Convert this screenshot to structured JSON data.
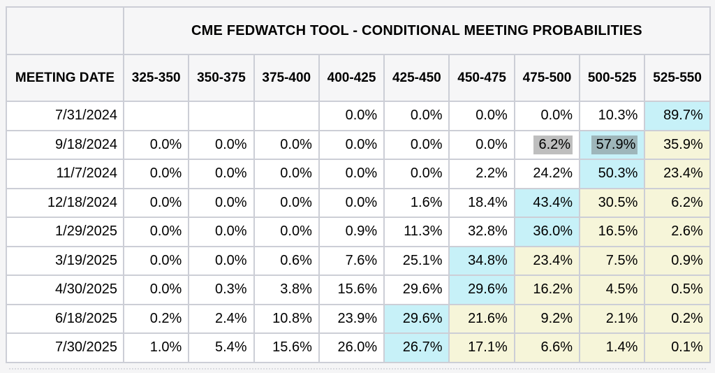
{
  "table": {
    "title": "CME FEDWATCH TOOL - CONDITIONAL MEETING PROBABILITIES",
    "date_header": "MEETING DATE"
  },
  "colors": {
    "cyan_highlight": "#c7f1f8",
    "yellow_highlight": "#f6f5d9",
    "header_background": "#f6f6f7",
    "cell_background": "#ffffff",
    "grid_border": "#ccced6",
    "selection_gray_on_white": "#c2c2c2",
    "selection_gray_on_cyan": "#a9c5c9"
  },
  "chart_data": {
    "type": "table",
    "title": "CME FEDWATCH TOOL - CONDITIONAL MEETING PROBABILITIES",
    "row_header": "MEETING DATE",
    "columns": [
      "325-350",
      "350-375",
      "375-400",
      "400-425",
      "425-450",
      "450-475",
      "475-500",
      "500-525",
      "525-550"
    ],
    "value_format": "percent_one_decimal",
    "rows": [
      {
        "meeting_date": "7/31/2024",
        "probabilities_pct": [
          null,
          null,
          null,
          0.0,
          0.0,
          0.0,
          0.0,
          10.3,
          89.7
        ],
        "cyan_cols": [
          8
        ],
        "yellow_cols": [],
        "selected_cols": []
      },
      {
        "meeting_date": "9/18/2024",
        "probabilities_pct": [
          0.0,
          0.0,
          0.0,
          0.0,
          0.0,
          0.0,
          6.2,
          57.9,
          35.9
        ],
        "cyan_cols": [
          7
        ],
        "yellow_cols": [
          8
        ],
        "selected_cols": [
          6,
          7
        ]
      },
      {
        "meeting_date": "11/7/2024",
        "probabilities_pct": [
          0.0,
          0.0,
          0.0,
          0.0,
          0.0,
          2.2,
          24.2,
          50.3,
          23.4
        ],
        "cyan_cols": [
          7
        ],
        "yellow_cols": [
          8
        ],
        "selected_cols": []
      },
      {
        "meeting_date": "12/18/2024",
        "probabilities_pct": [
          0.0,
          0.0,
          0.0,
          0.0,
          1.6,
          18.4,
          43.4,
          30.5,
          6.2
        ],
        "cyan_cols": [
          6
        ],
        "yellow_cols": [
          7,
          8
        ],
        "selected_cols": []
      },
      {
        "meeting_date": "1/29/2025",
        "probabilities_pct": [
          0.0,
          0.0,
          0.0,
          0.9,
          11.3,
          32.8,
          36.0,
          16.5,
          2.6
        ],
        "cyan_cols": [
          6
        ],
        "yellow_cols": [
          7,
          8
        ],
        "selected_cols": []
      },
      {
        "meeting_date": "3/19/2025",
        "probabilities_pct": [
          0.0,
          0.0,
          0.6,
          7.6,
          25.1,
          34.8,
          23.4,
          7.5,
          0.9
        ],
        "cyan_cols": [
          5
        ],
        "yellow_cols": [
          6,
          7,
          8
        ],
        "selected_cols": []
      },
      {
        "meeting_date": "4/30/2025",
        "probabilities_pct": [
          0.0,
          0.3,
          3.8,
          15.6,
          29.6,
          29.6,
          16.2,
          4.5,
          0.5
        ],
        "cyan_cols": [
          5
        ],
        "yellow_cols": [
          6,
          7,
          8
        ],
        "selected_cols": []
      },
      {
        "meeting_date": "6/18/2025",
        "probabilities_pct": [
          0.2,
          2.4,
          10.8,
          23.9,
          29.6,
          21.6,
          9.2,
          2.1,
          0.2
        ],
        "cyan_cols": [
          4
        ],
        "yellow_cols": [
          5,
          6,
          7,
          8
        ],
        "selected_cols": []
      },
      {
        "meeting_date": "7/30/2025",
        "probabilities_pct": [
          1.0,
          5.4,
          15.6,
          26.0,
          26.7,
          17.1,
          6.6,
          1.4,
          0.1
        ],
        "cyan_cols": [
          4
        ],
        "yellow_cols": [
          5,
          6,
          7,
          8
        ],
        "selected_cols": []
      }
    ]
  }
}
